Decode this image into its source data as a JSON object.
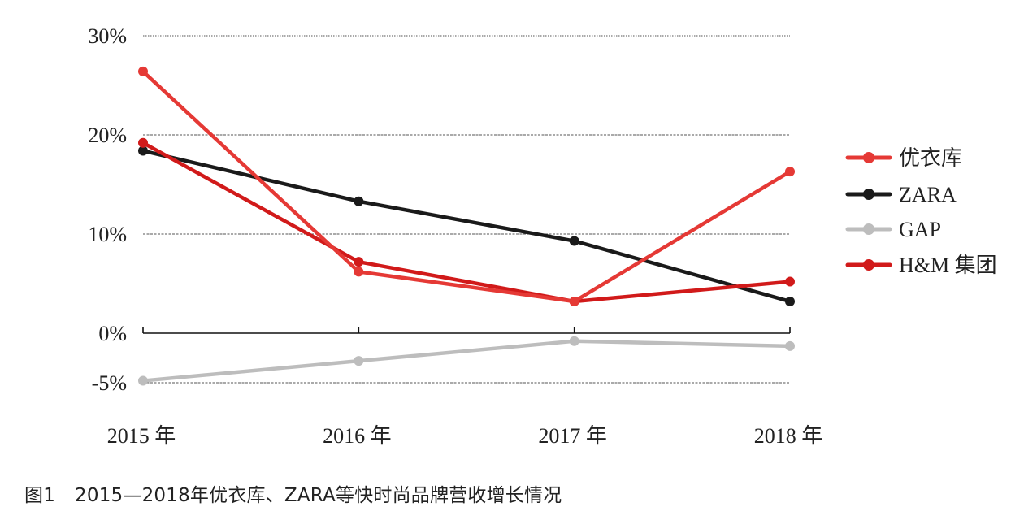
{
  "caption": {
    "figure_number": "图1",
    "text": "2015—2018年优衣库、ZARA等快时尚品牌营收增长情况"
  },
  "chart_data": {
    "type": "line",
    "title": "2015—2018年优衣库、ZARA等快时尚品牌营收增长情况",
    "xlabel": "",
    "ylabel": "",
    "categories": [
      "2015 年",
      "2016 年",
      "2017 年",
      "2018 年"
    ],
    "y_ticks": [
      {
        "value": 30,
        "label": "30%"
      },
      {
        "value": 20,
        "label": "20%"
      },
      {
        "value": 10,
        "label": "10%"
      },
      {
        "value": 0,
        "label": "0%"
      },
      {
        "value": -5,
        "label": "-5%"
      }
    ],
    "ylim": [
      -5,
      30
    ],
    "grid": true,
    "legend_position": "right",
    "series": [
      {
        "name": "优衣库",
        "color": "#e53935",
        "values": [
          26.4,
          6.2,
          3.2,
          16.3
        ]
      },
      {
        "name": "ZARA",
        "color": "#1a1a1a",
        "values": [
          18.4,
          13.3,
          9.3,
          3.2
        ]
      },
      {
        "name": "GAP",
        "color": "#bdbdbd",
        "values": [
          -4.8,
          -2.8,
          -0.8,
          -1.3
        ]
      },
      {
        "name": "H&M 集团",
        "color": "#d11a1a",
        "values": [
          19.2,
          7.2,
          3.2,
          5.2
        ]
      }
    ]
  }
}
